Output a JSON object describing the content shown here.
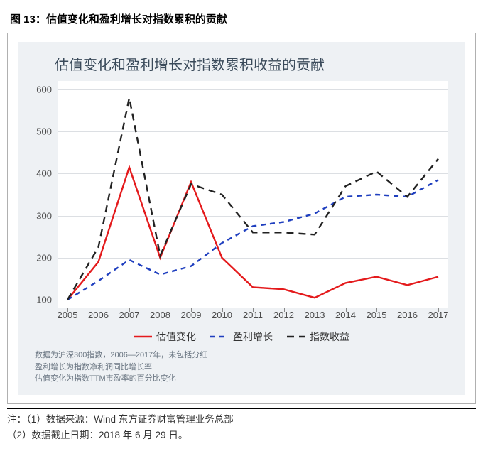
{
  "caption": "图 13：估值变化和盈利增长对指数累积的贡献",
  "chart": {
    "type": "line",
    "title": "估值变化和盈利增长对指数累积收益的贡献",
    "background_color": "#eef1f4",
    "plot_background": "#ffffff",
    "grid_color": "#dcdfe3",
    "title_color": "#3a4a5a",
    "title_fontsize": 20,
    "label_fontsize": 13,
    "years": [
      "2005",
      "2006",
      "2007",
      "2008",
      "2009",
      "2010",
      "2011",
      "2012",
      "2013",
      "2014",
      "2015",
      "2016",
      "2017"
    ],
    "ylim": [
      80,
      620
    ],
    "yticks": [
      100,
      200,
      300,
      400,
      500,
      600
    ],
    "series": [
      {
        "key": "valuation",
        "label": "估值变化",
        "color": "#e41a1c",
        "width": 2.4,
        "dash": "",
        "values": [
          100,
          190,
          415,
          200,
          380,
          200,
          130,
          125,
          105,
          140,
          155,
          135,
          155
        ]
      },
      {
        "key": "earnings",
        "label": "盈利增长",
        "color": "#1f3fbf",
        "width": 2.4,
        "dash": "7 6",
        "values": [
          100,
          145,
          195,
          160,
          180,
          235,
          275,
          285,
          305,
          345,
          350,
          345,
          385
        ]
      },
      {
        "key": "index",
        "label": "指数收益",
        "color": "#222222",
        "width": 2.4,
        "dash": "10 7",
        "values": [
          100,
          225,
          580,
          205,
          375,
          350,
          260,
          260,
          255,
          370,
          405,
          345,
          435
        ]
      }
    ],
    "inner_footnotes": [
      "数据为沪深300指数，2006—2017年，未包括分红",
      "盈利增长为指数净利润同比增长率",
      "估值变化为指数TTM市盈率的百分比变化"
    ]
  },
  "notes": [
    "注：（1）数据来源：Wind 东方证券财富管理业务总部",
    "（2）数据截止日期：2018 年 6 月 29 日。"
  ]
}
